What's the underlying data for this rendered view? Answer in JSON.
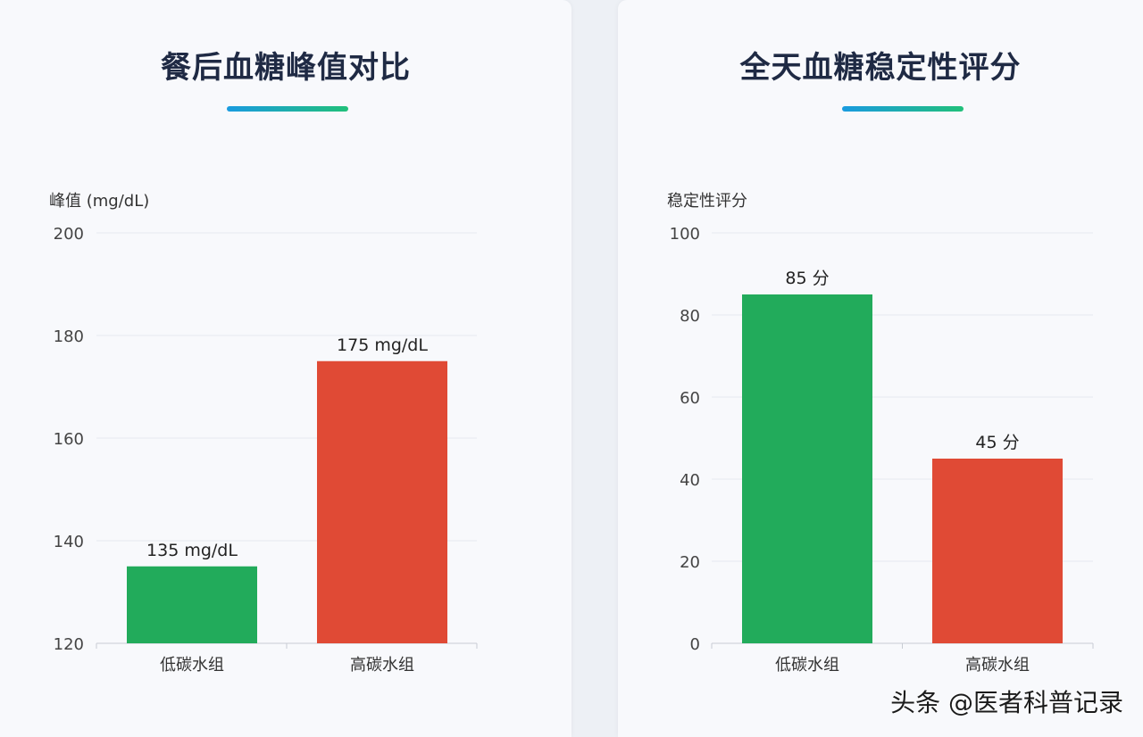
{
  "charts": [
    {
      "title": "餐后血糖峰值对比",
      "chart_data": {
        "type": "bar",
        "ylabel": "峰值 (mg/dL)",
        "ylim": [
          120,
          200
        ],
        "yticks": [
          120,
          140,
          160,
          180,
          200
        ],
        "categories": [
          "低碳水组",
          "高碳水组"
        ],
        "values": [
          135,
          175
        ],
        "value_labels": [
          "135 mg/dL",
          "175 mg/dL"
        ],
        "colors": [
          "#22ab5b",
          "#e04a35"
        ],
        "grid": true
      }
    },
    {
      "title": "全天血糖稳定性评分",
      "chart_data": {
        "type": "bar",
        "ylabel": "稳定性评分",
        "ylim": [
          0,
          100
        ],
        "yticks": [
          0,
          20,
          40,
          60,
          80,
          100
        ],
        "categories": [
          "低碳水组",
          "高碳水组"
        ],
        "values": [
          85,
          45
        ],
        "value_labels": [
          "85 分",
          "45 分"
        ],
        "colors": [
          "#22ab5b",
          "#e04a35"
        ],
        "grid": true
      }
    }
  ],
  "watermark": "头条 @医者科普记录"
}
